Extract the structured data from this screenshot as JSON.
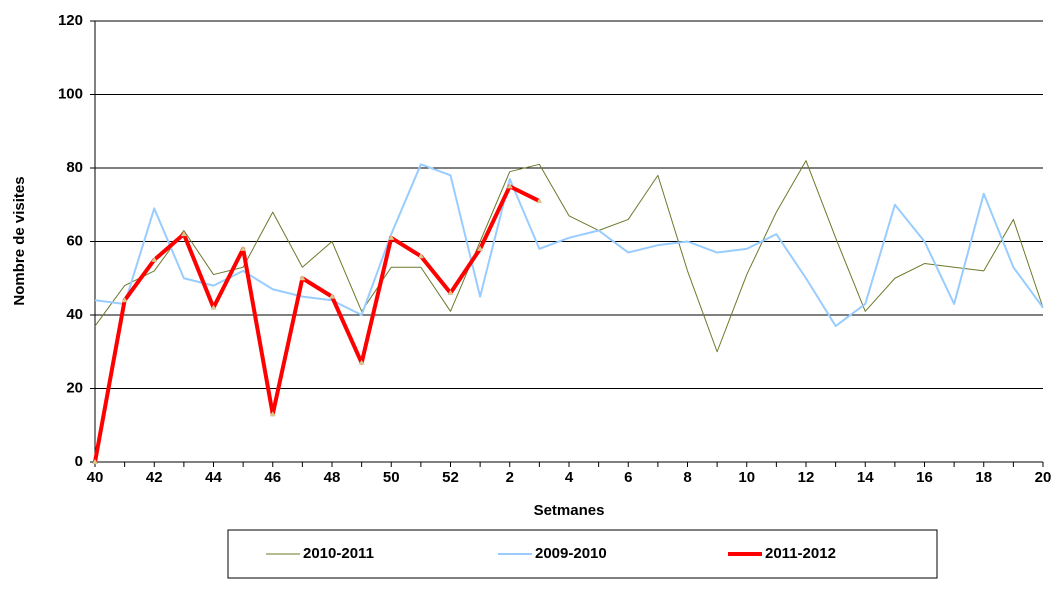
{
  "chart_data": {
    "type": "line",
    "x_label": "Setmanes",
    "y_label": "Nombre de visites",
    "categories": [
      "40",
      null,
      "42",
      null,
      "44",
      null,
      "46",
      null,
      "48",
      null,
      "50",
      null,
      "52",
      null,
      "2",
      null,
      "4",
      null,
      "6",
      null,
      "8",
      null,
      "10",
      null,
      "12",
      null,
      "14",
      null,
      "16",
      null,
      "18",
      null,
      "20"
    ],
    "series": [
      {
        "name": "2010-2011",
        "color": "#6b7a2a",
        "linewidth": 1,
        "values": [
          37,
          48,
          52,
          63,
          51,
          53,
          68,
          53,
          60,
          41,
          53,
          53,
          41,
          60,
          79,
          81,
          67,
          63,
          66,
          78,
          52,
          30,
          51,
          68,
          82,
          61,
          41,
          50,
          54,
          53,
          52,
          66,
          42
        ]
      },
      {
        "name": "2009-2010",
        "color": "#99ccff",
        "linewidth": 2,
        "values": [
          44,
          43,
          69,
          50,
          48,
          52,
          47,
          45,
          44,
          40,
          62,
          81,
          78,
          45,
          77,
          58,
          61,
          63,
          57,
          59,
          60,
          57,
          58,
          62,
          50,
          37,
          43,
          70,
          60,
          43,
          73,
          53,
          42
        ]
      },
      {
        "name": "2011-2012",
        "color": "#ff0000",
        "linewidth": 4,
        "marker": "triangle",
        "marker_color": "#d8c890",
        "values": [
          0,
          44,
          55,
          62,
          42,
          58,
          13,
          50,
          45,
          27,
          61,
          56,
          46,
          58,
          75,
          71,
          null,
          null,
          null,
          null,
          null,
          null,
          null,
          null,
          null,
          null,
          null,
          null,
          null,
          null,
          null,
          null,
          null
        ]
      }
    ],
    "ylim": [
      0,
      120
    ],
    "yticks": [
      0,
      20,
      40,
      60,
      80,
      100,
      120
    ],
    "grid": true,
    "legend": "bottom"
  }
}
